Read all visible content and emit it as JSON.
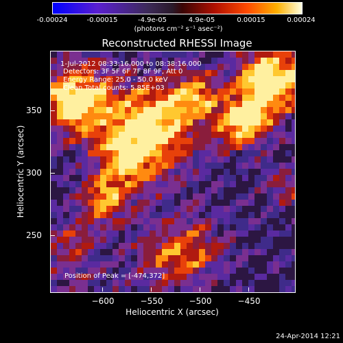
{
  "colorbar": {
    "ticks": [
      "-0.00024",
      "-0.00015",
      "-4.9e-05",
      "4.9e-05",
      "0.00015",
      "0.00024"
    ],
    "unit": "(photons cm⁻² s⁻¹ asec⁻²)"
  },
  "plot": {
    "title": "Reconstructed RHESSI Image",
    "time_range": "1-Jul-2012 08:33:16.000 to 08:38:16.000",
    "detectors": "Detectors: 3F 5F 6F 7F 8F 9F, Att 0",
    "energy_range": "Energy Range: 25.0 - 50.0 keV",
    "clean_counts": "Clean    Total counts: 5.85E+03",
    "peak_position": "Position of Peak = [-474,372]",
    "x_ticks": [
      "−600",
      "−550",
      "−500",
      "−450"
    ],
    "y_ticks": [
      "350",
      "300",
      "250"
    ],
    "xlabel": "Heliocentric X (arcsec)",
    "ylabel": "Heliocentric Y (arcsec)"
  },
  "footer": {
    "timestamp": "24-Apr-2014 12:21"
  },
  "palette": [
    "#2c1642",
    "#3f2b8a",
    "#5a2aa0",
    "#7a2f90",
    "#8a1d3c",
    "#b01a10",
    "#e8410a",
    "#ff8a10",
    "#ffc830",
    "#fff0a0"
  ]
}
